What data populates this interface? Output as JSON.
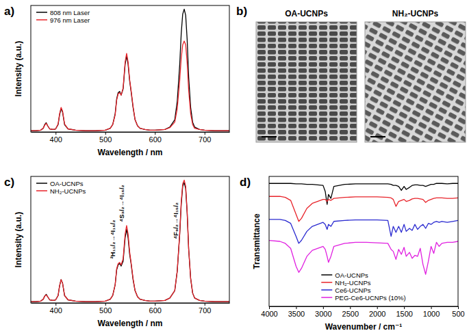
{
  "chart_data": [
    {
      "type": "line",
      "title": "a)",
      "x_label": "Wavelength / nm",
      "y_label": "Intensity (a.u.)",
      "x": [
        350,
        360,
        370,
        375,
        378,
        381,
        384,
        388,
        395,
        400,
        405,
        408,
        411,
        414,
        418,
        425,
        440,
        460,
        480,
        500,
        510,
        515,
        520,
        523,
        526,
        529,
        532,
        536,
        540,
        543,
        546,
        549,
        552,
        556,
        560,
        565,
        570,
        580,
        590,
        600,
        620,
        630,
        640,
        645,
        650,
        653,
        656,
        659,
        662,
        665,
        668,
        672,
        676,
        680,
        690,
        700,
        720,
        750
      ],
      "series": [
        {
          "name": "808 nm Laser",
          "color": "#000000",
          "values": [
            0.01,
            0.01,
            0.015,
            0.03,
            0.06,
            0.075,
            0.05,
            0.025,
            0.02,
            0.025,
            0.06,
            0.14,
            0.19,
            0.16,
            0.06,
            0.025,
            0.015,
            0.01,
            0.01,
            0.015,
            0.03,
            0.06,
            0.15,
            0.27,
            0.32,
            0.33,
            0.3,
            0.35,
            0.55,
            0.62,
            0.55,
            0.42,
            0.33,
            0.2,
            0.1,
            0.05,
            0.03,
            0.02,
            0.015,
            0.015,
            0.02,
            0.04,
            0.1,
            0.25,
            0.55,
            0.8,
            0.96,
            1.0,
            0.95,
            0.75,
            0.45,
            0.2,
            0.08,
            0.04,
            0.02,
            0.015,
            0.01,
            0.01
          ]
        },
        {
          "name": "976 nm Laser",
          "color": "#e8232a",
          "values": [
            0.01,
            0.01,
            0.015,
            0.03,
            0.055,
            0.07,
            0.05,
            0.025,
            0.02,
            0.025,
            0.065,
            0.15,
            0.2,
            0.17,
            0.065,
            0.025,
            0.015,
            0.01,
            0.01,
            0.015,
            0.03,
            0.06,
            0.14,
            0.26,
            0.31,
            0.32,
            0.3,
            0.36,
            0.57,
            0.64,
            0.57,
            0.43,
            0.34,
            0.21,
            0.1,
            0.05,
            0.03,
            0.02,
            0.015,
            0.015,
            0.02,
            0.035,
            0.08,
            0.19,
            0.42,
            0.6,
            0.71,
            0.74,
            0.71,
            0.56,
            0.34,
            0.15,
            0.06,
            0.03,
            0.02,
            0.015,
            0.01,
            0.01
          ]
        }
      ],
      "xlim": [
        350,
        750
      ],
      "ylim": [
        0,
        1.03
      ],
      "xticks": [
        400,
        500,
        600,
        700
      ],
      "tick_labels": "x",
      "legend": "upper left",
      "grid": false
    },
    {
      "type": "image",
      "title": "b)",
      "images": [
        "OA-UCNPs",
        "NH₂-UCNPs"
      ]
    },
    {
      "type": "line",
      "title": "c)",
      "x_label": "Wavelength / nm",
      "y_label": "Intensity (a.u.)",
      "x": [
        350,
        360,
        370,
        375,
        378,
        381,
        384,
        388,
        395,
        400,
        405,
        408,
        411,
        414,
        418,
        425,
        440,
        460,
        480,
        500,
        510,
        515,
        520,
        523,
        526,
        529,
        532,
        536,
        540,
        543,
        546,
        549,
        552,
        556,
        560,
        565,
        570,
        580,
        590,
        600,
        620,
        630,
        640,
        645,
        650,
        653,
        656,
        659,
        662,
        665,
        668,
        672,
        676,
        680,
        690,
        700,
        720,
        750
      ],
      "series": [
        {
          "name": "OA-UCNPs",
          "color": "#000000",
          "values": [
            0.01,
            0.01,
            0.015,
            0.03,
            0.055,
            0.07,
            0.05,
            0.025,
            0.02,
            0.025,
            0.06,
            0.14,
            0.19,
            0.16,
            0.06,
            0.025,
            0.015,
            0.01,
            0.01,
            0.015,
            0.03,
            0.06,
            0.15,
            0.27,
            0.31,
            0.32,
            0.3,
            0.34,
            0.53,
            0.6,
            0.53,
            0.4,
            0.32,
            0.19,
            0.1,
            0.05,
            0.03,
            0.02,
            0.015,
            0.015,
            0.02,
            0.04,
            0.1,
            0.26,
            0.56,
            0.8,
            0.95,
            0.98,
            0.93,
            0.73,
            0.44,
            0.2,
            0.08,
            0.04,
            0.02,
            0.015,
            0.01,
            0.01
          ]
        },
        {
          "name": "NH₂-UCNPs",
          "color": "#e8232a",
          "values": [
            0.01,
            0.01,
            0.015,
            0.03,
            0.055,
            0.065,
            0.05,
            0.025,
            0.02,
            0.025,
            0.06,
            0.14,
            0.19,
            0.16,
            0.06,
            0.025,
            0.015,
            0.01,
            0.01,
            0.015,
            0.03,
            0.06,
            0.15,
            0.28,
            0.32,
            0.33,
            0.31,
            0.36,
            0.56,
            0.63,
            0.56,
            0.42,
            0.33,
            0.2,
            0.1,
            0.05,
            0.03,
            0.02,
            0.015,
            0.015,
            0.02,
            0.04,
            0.1,
            0.26,
            0.57,
            0.82,
            0.97,
            1.0,
            0.95,
            0.74,
            0.44,
            0.2,
            0.08,
            0.04,
            0.02,
            0.015,
            0.01,
            0.01
          ]
        }
      ],
      "annotations": [
        {
          "text": "²H₁₁/₂→⁴I₁₅/₂",
          "x": 520,
          "y": 0.36
        },
        {
          "text": "⁴S₃/₂→⁴I₁₅/₂",
          "x": 537,
          "y": 0.66
        },
        {
          "text": "⁴F₉/₂→⁴I₁₅/₂",
          "x": 646,
          "y": 0.52
        }
      ],
      "xlim": [
        350,
        750
      ],
      "ylim": [
        0,
        1.03
      ],
      "xticks": [
        400,
        500,
        600,
        700
      ],
      "tick_labels": "x",
      "legend": "upper left",
      "grid": false
    },
    {
      "type": "line",
      "title": "d)",
      "x_label": "Wavenumber / cm⁻¹",
      "y_label": "Transmittance",
      "x": [
        4000,
        3800,
        3700,
        3600,
        3500,
        3450,
        3400,
        3300,
        3200,
        3000,
        2960,
        2925,
        2900,
        2855,
        2800,
        2600,
        2400,
        2200,
        2000,
        1800,
        1740,
        1700,
        1650,
        1600,
        1550,
        1500,
        1460,
        1400,
        1350,
        1300,
        1250,
        1200,
        1150,
        1100,
        1050,
        1000,
        950,
        900,
        850,
        800,
        700,
        600,
        500
      ],
      "series": [
        {
          "name": "OA-UCNPs",
          "color": "#000000",
          "values": [
            0.93,
            0.93,
            0.93,
            0.93,
            0.925,
            0.925,
            0.925,
            0.92,
            0.92,
            0.91,
            0.85,
            0.72,
            0.82,
            0.78,
            0.9,
            0.92,
            0.925,
            0.925,
            0.925,
            0.925,
            0.92,
            0.91,
            0.91,
            0.9,
            0.86,
            0.9,
            0.87,
            0.89,
            0.91,
            0.915,
            0.915,
            0.91,
            0.91,
            0.9,
            0.91,
            0.92,
            0.92,
            0.93,
            0.93,
            0.93,
            0.925,
            0.93,
            0.93
          ]
        },
        {
          "name": "NH₂-UCNPs",
          "color": "#e8232a",
          "values": [
            0.8,
            0.8,
            0.79,
            0.76,
            0.62,
            0.55,
            0.58,
            0.68,
            0.73,
            0.77,
            0.77,
            0.75,
            0.77,
            0.76,
            0.78,
            0.79,
            0.795,
            0.795,
            0.795,
            0.79,
            0.785,
            0.77,
            0.7,
            0.75,
            0.76,
            0.77,
            0.75,
            0.76,
            0.775,
            0.78,
            0.78,
            0.775,
            0.77,
            0.74,
            0.76,
            0.77,
            0.78,
            0.785,
            0.785,
            0.785,
            0.78,
            0.78,
            0.785
          ]
        },
        {
          "name": "Ce6-UCNPs",
          "color": "#2a2ad0",
          "values": [
            0.57,
            0.57,
            0.56,
            0.53,
            0.4,
            0.33,
            0.36,
            0.45,
            0.5,
            0.54,
            0.52,
            0.47,
            0.52,
            0.5,
            0.55,
            0.56,
            0.565,
            0.565,
            0.565,
            0.56,
            0.4,
            0.5,
            0.44,
            0.5,
            0.44,
            0.52,
            0.45,
            0.48,
            0.46,
            0.52,
            0.47,
            0.5,
            0.52,
            0.48,
            0.53,
            0.52,
            0.54,
            0.55,
            0.54,
            0.55,
            0.54,
            0.55,
            0.56
          ]
        },
        {
          "name": "PEG-Ce6-UCNPs (10%)",
          "color": "#e020e0",
          "values": [
            0.36,
            0.35,
            0.33,
            0.28,
            0.1,
            0.04,
            0.08,
            0.2,
            0.26,
            0.3,
            0.27,
            0.2,
            0.14,
            0.2,
            0.3,
            0.33,
            0.34,
            0.34,
            0.335,
            0.33,
            0.27,
            0.25,
            0.17,
            0.27,
            0.22,
            0.29,
            0.2,
            0.24,
            0.18,
            0.21,
            0.2,
            0.28,
            0.12,
            0.02,
            0.15,
            0.3,
            0.23,
            0.34,
            0.3,
            0.33,
            0.34,
            0.34,
            0.35
          ]
        }
      ],
      "xlim": [
        4000,
        500
      ],
      "ylim": [
        -0.3,
        1
      ],
      "xticks": [
        4000,
        3500,
        3000,
        2500,
        2000,
        1500,
        1000,
        500
      ],
      "tick_labels": "x",
      "legend": "lower center",
      "grid": false
    }
  ]
}
